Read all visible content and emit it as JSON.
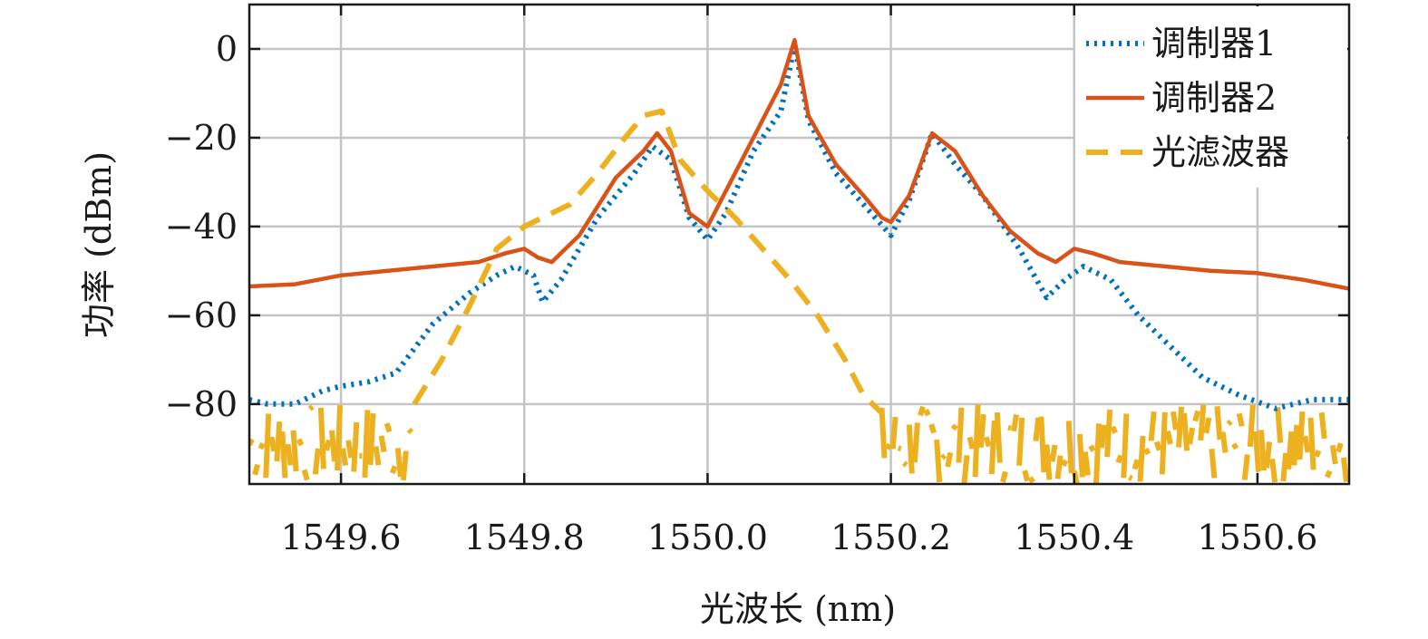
{
  "chart_data": {
    "type": "line",
    "title": "",
    "xlabel": "光波长 (nm)",
    "ylabel": "功率 (dBm)",
    "xlim": [
      1549.5,
      1550.7
    ],
    "ylim": [
      -98,
      10
    ],
    "xticks": [
      1549.6,
      1549.8,
      1550.0,
      1550.2,
      1550.4,
      1550.6
    ],
    "xtick_labels": [
      "1549.6",
      "1549.8",
      "1550.0",
      "1550.2",
      "1550.4",
      "1550.6"
    ],
    "yticks": [
      0,
      -20,
      -40,
      -60,
      -80
    ],
    "ytick_labels": [
      "0",
      "−20",
      "−40",
      "−60",
      "−80"
    ],
    "grid": true,
    "legend_position": "top-right",
    "series": [
      {
        "name": "调制器1",
        "color": "#0072BD",
        "style": "dotted",
        "x": [
          1549.5,
          1549.52,
          1549.55,
          1549.58,
          1549.6,
          1549.63,
          1549.66,
          1549.7,
          1549.74,
          1549.77,
          1549.79,
          1549.81,
          1549.82,
          1549.84,
          1549.88,
          1549.92,
          1549.94,
          1549.96,
          1549.98,
          1550.0,
          1550.02,
          1550.05,
          1550.08,
          1550.095,
          1550.11,
          1550.14,
          1550.17,
          1550.2,
          1550.22,
          1550.245,
          1550.27,
          1550.3,
          1550.34,
          1550.37,
          1550.39,
          1550.41,
          1550.44,
          1550.47,
          1550.5,
          1550.54,
          1550.58,
          1550.62,
          1550.66,
          1550.7
        ],
        "y": [
          -79,
          -80,
          -80,
          -77,
          -76,
          -75,
          -73,
          -62,
          -55,
          -51,
          -49,
          -51,
          -57,
          -52,
          -38,
          -28,
          -22,
          -25,
          -38,
          -43,
          -37,
          -23,
          -14,
          1,
          -16,
          -28,
          -35,
          -42,
          -34,
          -19,
          -26,
          -33,
          -45,
          -56,
          -52,
          -49,
          -52,
          -60,
          -66,
          -74,
          -78,
          -81,
          -79,
          -79
        ]
      },
      {
        "name": "调制器2",
        "color": "#D95319",
        "style": "solid",
        "x": [
          1549.5,
          1549.55,
          1549.6,
          1549.65,
          1549.7,
          1549.75,
          1549.78,
          1549.8,
          1549.815,
          1549.83,
          1549.86,
          1549.9,
          1549.93,
          1549.945,
          1549.96,
          1549.98,
          1550.0,
          1550.02,
          1550.05,
          1550.08,
          1550.095,
          1550.11,
          1550.14,
          1550.17,
          1550.19,
          1550.2,
          1550.22,
          1550.245,
          1550.27,
          1550.3,
          1550.33,
          1550.36,
          1550.38,
          1550.4,
          1550.42,
          1550.45,
          1550.5,
          1550.55,
          1550.6,
          1550.65,
          1550.7
        ],
        "y": [
          -53.5,
          -53,
          -51,
          -50,
          -49,
          -48,
          -46,
          -45,
          -47,
          -48,
          -42,
          -29,
          -23,
          -19,
          -23,
          -37,
          -40,
          -32,
          -20,
          -8,
          2,
          -15,
          -26,
          -33,
          -38,
          -39,
          -33,
          -19,
          -23,
          -33,
          -41,
          -46,
          -48,
          -45,
          -46,
          -48,
          -49,
          -50,
          -50.5,
          -52,
          -54
        ]
      },
      {
        "name": "光滤波器",
        "color": "#EDB120",
        "style": "dashed",
        "x": [
          1549.68,
          1549.71,
          1549.74,
          1549.77,
          1549.8,
          1549.85,
          1549.88,
          1549.91,
          1549.93,
          1549.95,
          1549.97,
          1550.0,
          1550.03,
          1550.06,
          1550.09,
          1550.12,
          1550.15,
          1550.17,
          1550.19
        ],
        "y": [
          -80,
          -70,
          -58,
          -45,
          -40,
          -35,
          -28,
          -20,
          -15,
          -14,
          -25,
          -32,
          -38,
          -45,
          -52,
          -60,
          -70,
          -78,
          -82
        ],
        "noise_floor": [
          -98,
          -80
        ]
      }
    ]
  }
}
